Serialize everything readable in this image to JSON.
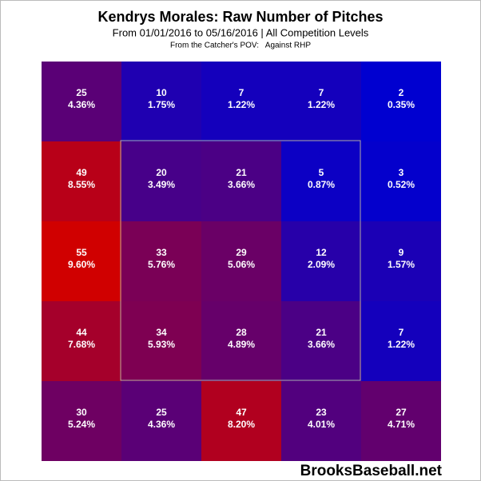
{
  "chart_data": {
    "type": "heatmap",
    "title": "Kendrys Morales: Raw Number of Pitches",
    "subtitle": "From 01/01/2016 to 05/16/2016 | All Competition Levels",
    "note": "From the Catcher's POV:   Against RHP",
    "watermark": "BrooksBaseball.net",
    "colorscale": [
      "#0000d0",
      "#d00000"
    ],
    "values": [
      [
        25,
        10,
        7,
        7,
        2
      ],
      [
        49,
        20,
        21,
        5,
        3
      ],
      [
        55,
        33,
        29,
        12,
        9
      ],
      [
        44,
        34,
        28,
        21,
        7
      ],
      [
        30,
        25,
        47,
        23,
        27
      ]
    ],
    "shares": {
      "values": [
        [
          4.36,
          1.75,
          1.22,
          1.22,
          0.35
        ],
        [
          8.55,
          3.49,
          3.66,
          0.87,
          0.52
        ],
        [
          9.6,
          5.76,
          5.06,
          2.09,
          1.57
        ],
        [
          7.68,
          5.93,
          4.89,
          3.66,
          1.22
        ],
        [
          5.24,
          4.36,
          8.2,
          4.01,
          4.71
        ]
      ],
      "value_labels": [
        [
          "4.36%",
          "1.75%",
          "1.22%",
          "1.22%",
          "0.35%"
        ],
        [
          "8.55%",
          "3.49%",
          "3.66%",
          "0.87%",
          "0.52%"
        ],
        [
          "9.60%",
          "5.76%",
          "5.06%",
          "2.09%",
          "1.57%"
        ],
        [
          "7.68%",
          "5.93%",
          "4.89%",
          "3.66%",
          "1.22%"
        ],
        [
          "5.24%",
          "4.36%",
          "8.20%",
          "4.01%",
          "4.71%"
        ]
      ]
    }
  }
}
